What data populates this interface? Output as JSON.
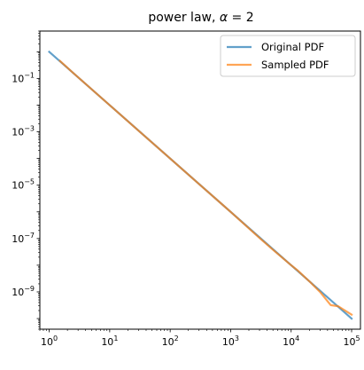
{
  "chart_data": {
    "type": "line",
    "title": "power law, α = 2",
    "title_main": "power law, ",
    "title_var": "α",
    "title_eq": " = 2",
    "xscale": "log",
    "yscale": "log",
    "xlim": [
      0.7,
      140000
    ],
    "ylim": [
      4e-11,
      6
    ],
    "xticks": [
      {
        "value": 1,
        "base": "10",
        "exp": "0"
      },
      {
        "value": 10,
        "base": "10",
        "exp": "1"
      },
      {
        "value": 100,
        "base": "10",
        "exp": "2"
      },
      {
        "value": 1000,
        "base": "10",
        "exp": "3"
      },
      {
        "value": 10000,
        "base": "10",
        "exp": "4"
      },
      {
        "value": 100000,
        "base": "10",
        "exp": "5"
      }
    ],
    "yticks": [
      {
        "value": 0.1,
        "base": "10",
        "exp": "−1"
      },
      {
        "value": 0.001,
        "base": "10",
        "exp": "−3"
      },
      {
        "value": 1e-05,
        "base": "10",
        "exp": "−5"
      },
      {
        "value": 1e-07,
        "base": "10",
        "exp": "−7"
      },
      {
        "value": 1e-09,
        "base": "10",
        "exp": "−9"
      }
    ],
    "grid": false,
    "legend_position": "top-right",
    "series": [
      {
        "name": "Original PDF",
        "color": "#1f77b4",
        "x": [
          1,
          100000
        ],
        "y": [
          1,
          1e-10
        ]
      },
      {
        "name": "Sampled PDF",
        "color": "#ff7f0e",
        "x": [
          1.5,
          2.5,
          5,
          10,
          30,
          100,
          300,
          1000,
          3000,
          5000,
          10000,
          13000,
          20000,
          30000,
          45000,
          60000,
          100000
        ],
        "y": [
          0.46,
          0.16,
          0.04,
          0.01,
          0.0011,
          0.0001,
          1.1e-05,
          1e-06,
          1.05e-07,
          3.8e-08,
          1e-08,
          6.2e-09,
          2.5e-09,
          1e-09,
          3.2e-10,
          2.9e-10,
          1.4e-10
        ]
      }
    ]
  }
}
